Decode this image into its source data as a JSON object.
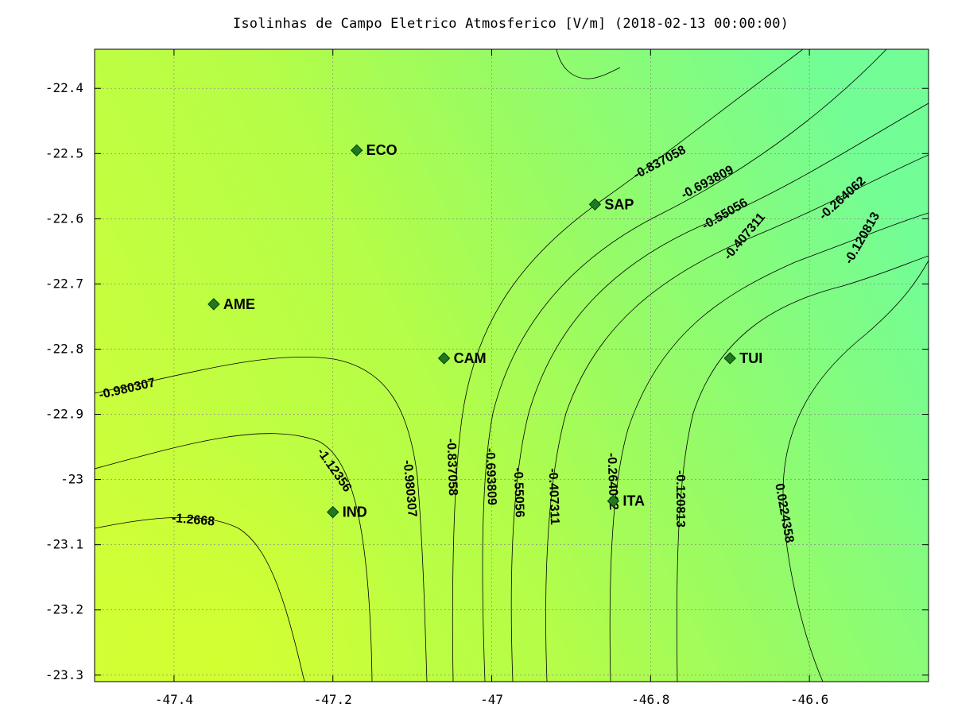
{
  "chart_data": {
    "type": "contour",
    "title": "Isolinhas de Campo Eletrico Atmosferico [V/m] (2018-02-13 00:00:00)",
    "xlabel": "",
    "ylabel": "",
    "xlim": [
      -47.5,
      -46.45
    ],
    "ylim": [
      -23.31,
      -22.34
    ],
    "x_ticks": [
      -47.4,
      -47.2,
      -47.0,
      -46.8,
      -46.6
    ],
    "x_tick_labels": [
      "-47.4",
      "-47.2",
      "-47",
      "-46.8",
      "-46.6"
    ],
    "y_ticks": [
      -22.4,
      -22.5,
      -22.6,
      -22.7,
      -22.8,
      -22.9,
      -23.0,
      -23.1,
      -23.2,
      -23.3
    ],
    "y_tick_labels": [
      "-22.4",
      "-22.5",
      "-22.6",
      "-22.7",
      "-22.8",
      "-22.9",
      "-23",
      "-23.1",
      "-23.2",
      "-23.3"
    ],
    "grid": true,
    "colors": {
      "fill_low": "#d0ff38",
      "fill_mid": "#a8fc55",
      "fill_high": "#72fd96",
      "contour_line": "#000000",
      "station_marker": "#1f7a1f",
      "grid": "#808080"
    },
    "stations": [
      {
        "name": "ECO",
        "lon": -47.17,
        "lat": -22.495
      },
      {
        "name": "SAP",
        "lon": -46.87,
        "lat": -22.578
      },
      {
        "name": "AME",
        "lon": -47.35,
        "lat": -22.731
      },
      {
        "name": "CAM",
        "lon": -47.06,
        "lat": -22.814
      },
      {
        "name": "TUI",
        "lon": -46.7,
        "lat": -22.814
      },
      {
        "name": "IND",
        "lon": -47.2,
        "lat": -23.05
      },
      {
        "name": "ITA",
        "lon": -46.847,
        "lat": -23.033
      }
    ],
    "contour_levels": [
      {
        "level": -1.2668,
        "label": "-1.2668"
      },
      {
        "level": -1.12356,
        "label": "-1.12356"
      },
      {
        "level": -0.980307,
        "label": "-0.980307"
      },
      {
        "level": -0.837058,
        "label": "-0.837058"
      },
      {
        "level": -0.693809,
        "label": "-0.693809"
      },
      {
        "level": -0.55056,
        "label": "-0.55056"
      },
      {
        "level": -0.407311,
        "label": "-0.407311"
      },
      {
        "level": -0.264062,
        "label": "-0.264062"
      },
      {
        "level": -0.120813,
        "label": "-0.120813"
      },
      {
        "level": 0.0224358,
        "label": "0.0224358"
      }
    ]
  }
}
